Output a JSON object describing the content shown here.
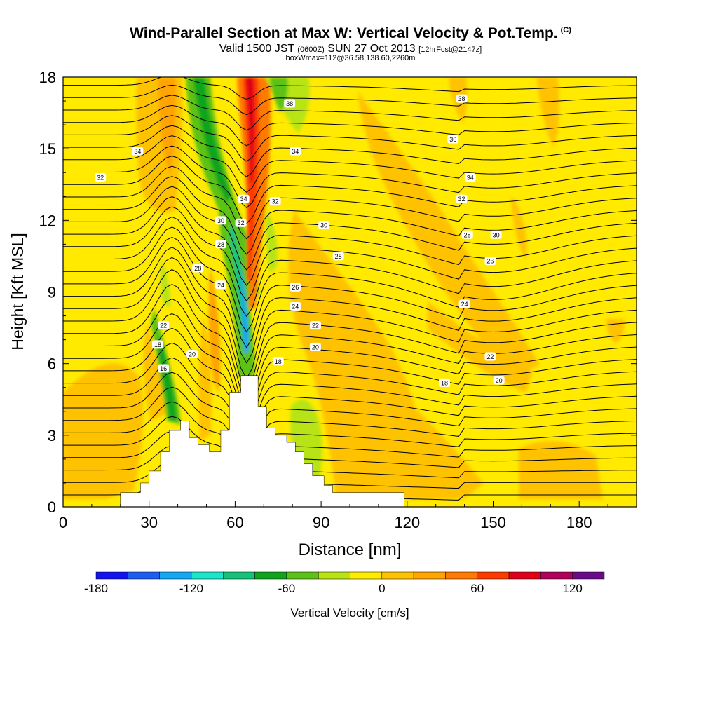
{
  "header": {
    "title": "Wind-Parallel Section at Max W: Vertical Velocity & Pot.Temp.",
    "copyright_mark": "(C)",
    "valid_prefix": "Valid 1500 JST",
    "valid_utc": "(0600Z)",
    "valid_date": "SUN 27 Oct 2013",
    "forecast_info": "[12hrFcst@2147z]",
    "box_info": "boxWmax=112@36.58,138.60,2260m"
  },
  "chart_data": {
    "type": "heatmap",
    "title": "Wind-Parallel Section at Max W: Vertical Velocity & Pot.Temp.",
    "xlabel": "Distance [nm]",
    "ylabel": "Height [Kft MSL]",
    "xlim": [
      0,
      200
    ],
    "ylim": [
      0,
      18
    ],
    "x_ticks": [
      "0",
      "30",
      "60",
      "90",
      "120",
      "150",
      "180"
    ],
    "y_ticks": [
      "0",
      "3",
      "6",
      "9",
      "12",
      "15",
      "18"
    ],
    "colorbar": {
      "label": "Vertical Velocity [cm/s]",
      "ticks": [
        "-180",
        "-120",
        "-60",
        "0",
        "60",
        "120"
      ],
      "bins": [
        -180,
        -160,
        -140,
        -120,
        -100,
        -80,
        -60,
        -40,
        -20,
        0,
        20,
        40,
        60,
        80,
        100,
        120,
        140
      ],
      "colors": [
        "#1212f2",
        "#1c5ef2",
        "#14a8f2",
        "#1ae6c8",
        "#13c478",
        "#0ea51c",
        "#5cc218",
        "#b8e414",
        "#ffea00",
        "#ffc200",
        "#ffa400",
        "#ff7a00",
        "#ff3a00",
        "#e00018",
        "#b0005a",
        "#6a0a8a"
      ]
    },
    "terrain": [
      [
        20,
        0
      ],
      [
        20,
        0.6
      ],
      [
        27,
        0.6
      ],
      [
        27,
        1
      ],
      [
        30,
        1
      ],
      [
        30,
        1.5
      ],
      [
        34,
        1.5
      ],
      [
        34,
        2.3
      ],
      [
        37,
        2.3
      ],
      [
        37,
        3.2
      ],
      [
        41,
        3.2
      ],
      [
        41,
        3.6
      ],
      [
        44,
        3.6
      ],
      [
        44,
        2.9
      ],
      [
        47,
        2.9
      ],
      [
        47,
        2.6
      ],
      [
        51,
        2.6
      ],
      [
        51,
        2.3
      ],
      [
        55,
        2.3
      ],
      [
        55,
        3.2
      ],
      [
        58,
        3.2
      ],
      [
        58,
        4.8
      ],
      [
        62,
        4.8
      ],
      [
        62,
        5.5
      ],
      [
        68,
        5.5
      ],
      [
        68,
        4.2
      ],
      [
        71,
        4.2
      ],
      [
        71,
        3.3
      ],
      [
        74,
        3.3
      ],
      [
        74,
        3
      ],
      [
        78,
        3
      ],
      [
        78,
        2.7
      ],
      [
        81,
        2.7
      ],
      [
        81,
        2.3
      ],
      [
        84,
        2.3
      ],
      [
        84,
        1.8
      ],
      [
        87,
        1.8
      ],
      [
        87,
        1.3
      ],
      [
        91,
        1.3
      ],
      [
        91,
        0.9
      ],
      [
        94,
        0.9
      ],
      [
        94,
        0.6
      ],
      [
        119,
        0.6
      ],
      [
        119,
        0
      ]
    ],
    "theta_contour_labels": [
      {
        "value": "38",
        "x": 79,
        "y": 16.9
      },
      {
        "value": "38",
        "x": 139,
        "y": 17.1
      },
      {
        "value": "36",
        "x": 136,
        "y": 15.4
      },
      {
        "value": "34",
        "x": 26,
        "y": 14.9
      },
      {
        "value": "34",
        "x": 81,
        "y": 14.9
      },
      {
        "value": "34",
        "x": 142,
        "y": 13.8
      },
      {
        "value": "34",
        "x": 63,
        "y": 12.9
      },
      {
        "value": "32",
        "x": 13,
        "y": 13.8
      },
      {
        "value": "32",
        "x": 74,
        "y": 12.8
      },
      {
        "value": "32",
        "x": 139,
        "y": 12.9
      },
      {
        "value": "32",
        "x": 62,
        "y": 11.9
      },
      {
        "value": "30",
        "x": 55,
        "y": 12
      },
      {
        "value": "30",
        "x": 91,
        "y": 11.8
      },
      {
        "value": "30",
        "x": 151,
        "y": 11.4
      },
      {
        "value": "28",
        "x": 55,
        "y": 11
      },
      {
        "value": "28",
        "x": 47,
        "y": 10
      },
      {
        "value": "28",
        "x": 96,
        "y": 10.5
      },
      {
        "value": "28",
        "x": 141,
        "y": 11.4
      },
      {
        "value": "26",
        "x": 149,
        "y": 10.3
      },
      {
        "value": "26",
        "x": 81,
        "y": 9.2
      },
      {
        "value": "24",
        "x": 55,
        "y": 9.3
      },
      {
        "value": "24",
        "x": 81,
        "y": 8.4
      },
      {
        "value": "24",
        "x": 140,
        "y": 8.5
      },
      {
        "value": "22",
        "x": 35,
        "y": 7.6
      },
      {
        "value": "22",
        "x": 88,
        "y": 7.6
      },
      {
        "value": "22",
        "x": 149,
        "y": 6.3
      },
      {
        "value": "20",
        "x": 45,
        "y": 6.4
      },
      {
        "value": "20",
        "x": 88,
        "y": 6.7
      },
      {
        "value": "20",
        "x": 152,
        "y": 5.3
      },
      {
        "value": "18",
        "x": 33,
        "y": 6.8
      },
      {
        "value": "18",
        "x": 75,
        "y": 6.1
      },
      {
        "value": "18",
        "x": 133,
        "y": 5.2
      },
      {
        "value": "16",
        "x": 35,
        "y": 5.8
      }
    ]
  }
}
